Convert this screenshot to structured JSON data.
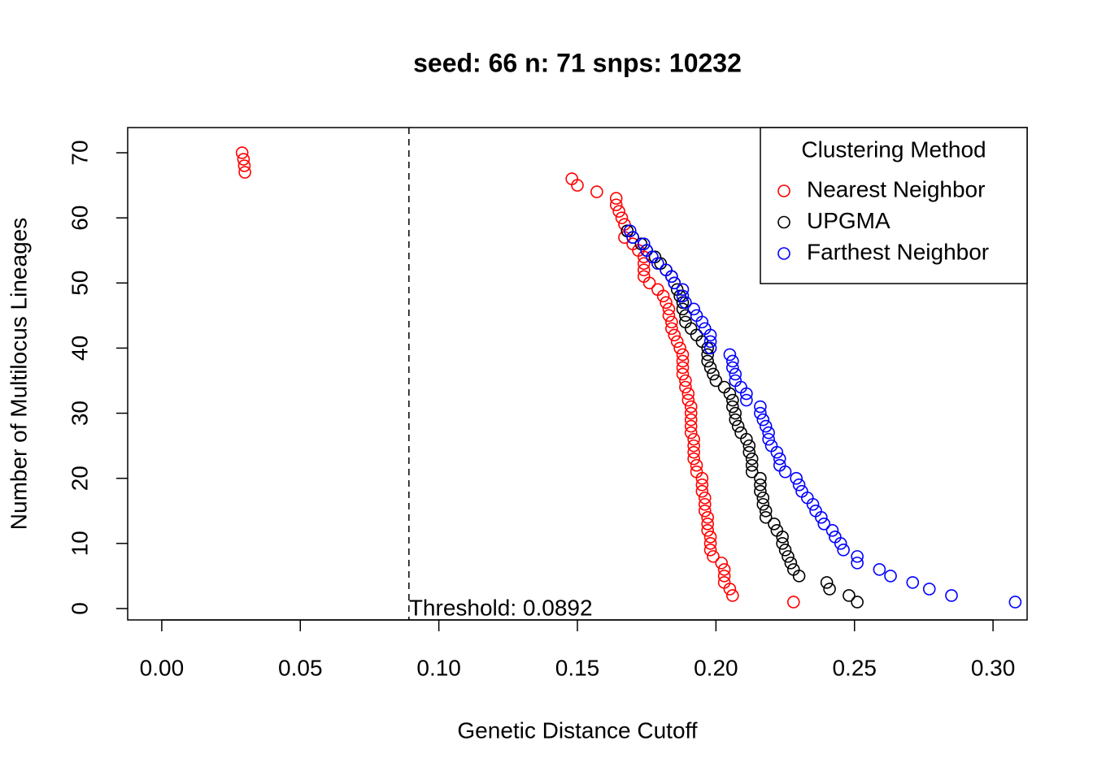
{
  "chart_data": {
    "type": "scatter",
    "title": "seed: 66 n: 71 snps: 10232",
    "x_label": "Genetic Distance Cutoff",
    "y_label": "Number of Multilocus Lineages",
    "legend_title": "Clustering Method",
    "legend_position": "top-right",
    "threshold": 0.0892,
    "threshold_label": "Threshold: 0.0892",
    "xlim": [
      -0.0123,
      0.3123
    ],
    "ylim": [
      -1.75,
      73.87
    ],
    "xticks": [
      {
        "value": 0,
        "label": "0.00"
      },
      0.05,
      {
        "value": 0.1,
        "label": "0.10"
      },
      0.15,
      {
        "value": 0.2,
        "label": "0.20"
      },
      0.25,
      {
        "value": 0.3,
        "label": "0.30"
      }
    ],
    "yticks": [
      0,
      10,
      20,
      30,
      40,
      50,
      60,
      70
    ],
    "series": [
      {
        "name": "Nearest Neighbor",
        "color": "#ff0000",
        "x": [
          0.029,
          0.0295,
          0.0298,
          0.03,
          0.148,
          0.15,
          0.157,
          0.164,
          0.164,
          0.165,
          0.166,
          0.167,
          0.168,
          0.167,
          0.17,
          0.172,
          0.174,
          0.174,
          0.174,
          0.174,
          0.176,
          0.179,
          0.181,
          0.182,
          0.183,
          0.183,
          0.184,
          0.184,
          0.185,
          0.186,
          0.187,
          0.188,
          0.188,
          0.188,
          0.188,
          0.189,
          0.189,
          0.19,
          0.19,
          0.191,
          0.191,
          0.191,
          0.191,
          0.191,
          0.192,
          0.192,
          0.192,
          0.192,
          0.193,
          0.193,
          0.195,
          0.195,
          0.195,
          0.196,
          0.196,
          0.196,
          0.197,
          0.197,
          0.197,
          0.198,
          0.198,
          0.198,
          0.199,
          0.202,
          0.203,
          0.203,
          0.203,
          0.205,
          0.206,
          0.228
        ],
        "values": [
          70,
          69,
          68,
          67,
          66,
          65,
          64,
          63,
          62,
          61,
          60,
          59,
          58,
          57,
          56,
          55,
          54,
          53,
          52,
          51,
          50,
          49,
          48,
          47,
          46,
          45,
          44,
          43,
          42,
          41,
          40,
          39,
          38,
          37,
          36,
          35,
          34,
          33,
          32,
          31,
          30,
          29,
          28,
          27,
          26,
          25,
          24,
          23,
          22,
          21,
          20,
          19,
          18,
          17,
          16,
          15,
          14,
          13,
          12,
          11,
          10,
          9,
          8,
          7,
          6,
          5,
          4,
          3,
          2,
          1
        ]
      },
      {
        "name": "UPGMA",
        "color": "#000000",
        "x": [
          0.168,
          0.17,
          0.173,
          0.175,
          0.178,
          0.18,
          0.182,
          0.184,
          0.185,
          0.186,
          0.187,
          0.188,
          0.188,
          0.189,
          0.189,
          0.191,
          0.193,
          0.195,
          0.197,
          0.197,
          0.197,
          0.198,
          0.199,
          0.2,
          0.203,
          0.205,
          0.206,
          0.206,
          0.207,
          0.207,
          0.208,
          0.209,
          0.211,
          0.212,
          0.212,
          0.213,
          0.213,
          0.213,
          0.216,
          0.216,
          0.216,
          0.217,
          0.217,
          0.218,
          0.218,
          0.221,
          0.222,
          0.224,
          0.224,
          0.225,
          0.226,
          0.227,
          0.228,
          0.23,
          0.24,
          0.241,
          0.248,
          0.251
        ],
        "values": [
          58,
          57,
          56,
          55,
          54,
          53,
          52,
          51,
          50,
          49,
          48,
          47,
          46,
          45,
          44,
          43,
          42,
          41,
          40,
          39,
          38,
          37,
          36,
          35,
          34,
          33,
          32,
          31,
          30,
          29,
          28,
          27,
          26,
          25,
          24,
          23,
          22,
          21,
          20,
          19,
          18,
          17,
          16,
          15,
          14,
          13,
          12,
          11,
          10,
          9,
          8,
          7,
          6,
          5,
          4,
          3,
          2,
          1
        ]
      },
      {
        "name": "Farthest Neighbor",
        "color": "#0000ff",
        "x": [
          0.169,
          0.17,
          0.174,
          0.175,
          0.177,
          0.179,
          0.182,
          0.184,
          0.185,
          0.188,
          0.188,
          0.189,
          0.192,
          0.193,
          0.195,
          0.196,
          0.198,
          0.198,
          0.198,
          0.205,
          0.206,
          0.206,
          0.207,
          0.207,
          0.209,
          0.211,
          0.211,
          0.216,
          0.216,
          0.217,
          0.218,
          0.219,
          0.219,
          0.22,
          0.222,
          0.223,
          0.223,
          0.225,
          0.229,
          0.23,
          0.231,
          0.233,
          0.235,
          0.236,
          0.238,
          0.239,
          0.242,
          0.243,
          0.245,
          0.246,
          0.251,
          0.251,
          0.259,
          0.263,
          0.271,
          0.277,
          0.285,
          0.308
        ],
        "values": [
          58,
          57,
          56,
          55,
          54,
          53,
          52,
          51,
          50,
          49,
          48,
          47,
          46,
          45,
          44,
          43,
          42,
          41,
          40,
          39,
          38,
          37,
          36,
          35,
          34,
          33,
          32,
          31,
          30,
          29,
          28,
          27,
          26,
          25,
          24,
          23,
          22,
          21,
          20,
          19,
          18,
          17,
          16,
          15,
          14,
          13,
          12,
          11,
          10,
          9,
          8,
          7,
          6,
          5,
          4,
          3,
          2,
          1
        ]
      }
    ]
  }
}
